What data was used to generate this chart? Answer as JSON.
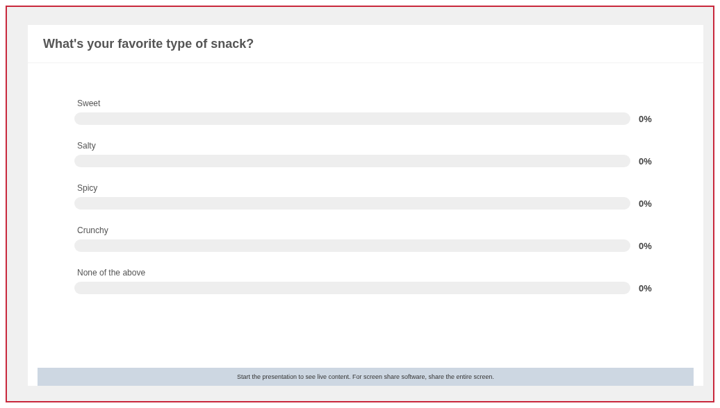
{
  "chart_data": {
    "type": "other",
    "title": "What's your favorite type of snack?",
    "categories": [
      "Sweet",
      "Salty",
      "Spicy",
      "Crunchy",
      "None of the above"
    ],
    "values": [
      0,
      0,
      0,
      0,
      0
    ],
    "value_labels": [
      "0%",
      "0%",
      "0%",
      "0%",
      "0%"
    ],
    "annotations": [
      "Start the presentation to see live content. For screen share software, share the entire screen."
    ]
  }
}
